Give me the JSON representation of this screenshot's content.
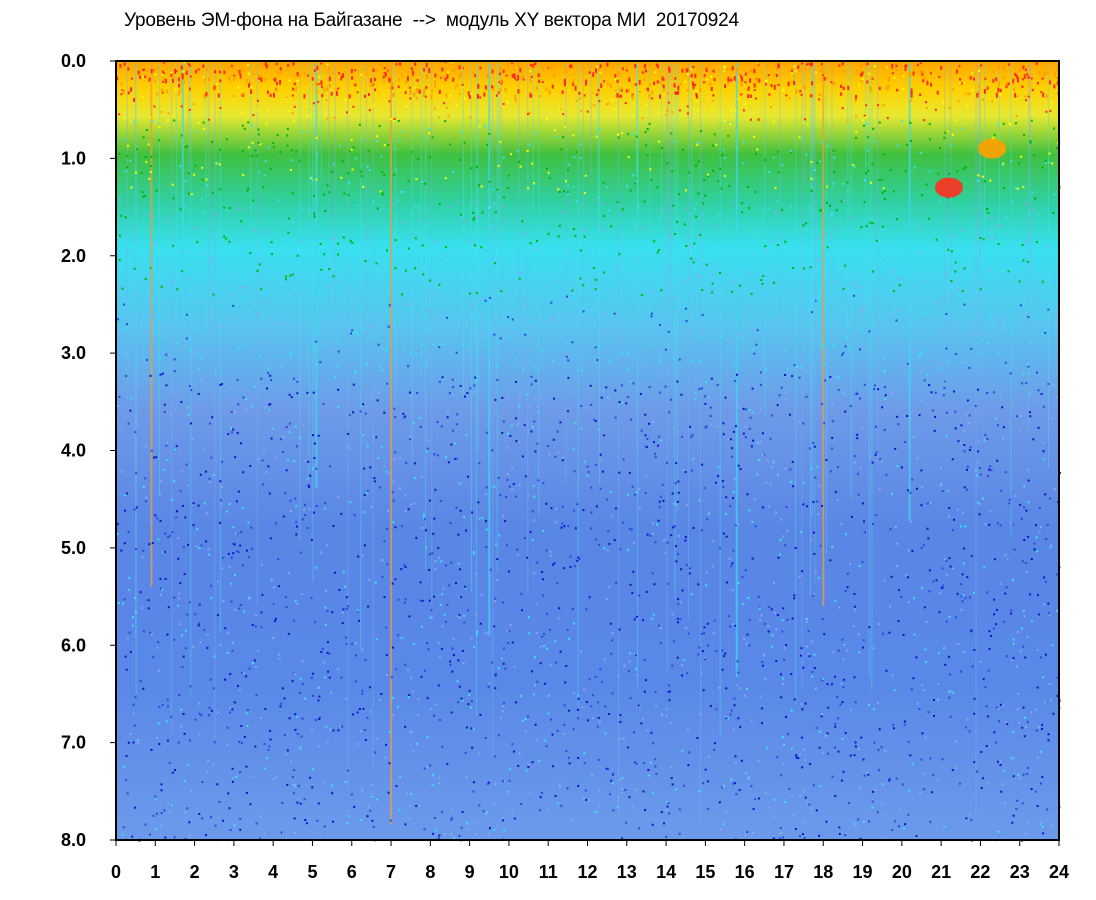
{
  "chart_data": {
    "type": "heatmap",
    "title": "Уровень ЭМ-фона на Байгазане  -->  модуль XY вектора МИ  20170924",
    "xlabel": "",
    "ylabel": "",
    "xlim": [
      0,
      24
    ],
    "ylim": [
      0,
      8.0
    ],
    "y_axis_inverted": true,
    "x_ticks": [
      "0",
      "1",
      "2",
      "3",
      "4",
      "5",
      "6",
      "7",
      "8",
      "9",
      "10",
      "11",
      "12",
      "13",
      "14",
      "15",
      "16",
      "17",
      "18",
      "19",
      "20",
      "21",
      "22",
      "23",
      "24"
    ],
    "y_ticks": [
      "0.0",
      "1.0",
      "2.0",
      "3.0",
      "4.0",
      "5.0",
      "6.0",
      "7.0",
      "8.0"
    ],
    "grid": false,
    "colormap": {
      "description": "high -> low",
      "colors": [
        "#ff2a1a",
        "#ffa000",
        "#ffff00",
        "#00b400",
        "#38e4f0",
        "#8ca6f0",
        "#2848e0",
        "#0a14c8"
      ]
    },
    "approx_band_boundaries": {
      "red_yellow_top_band": [
        0.0,
        0.6
      ],
      "green_band": [
        0.6,
        2.2
      ],
      "cyan_band": [
        1.2,
        3.0
      ],
      "blue_background": [
        3.0,
        8.0
      ]
    },
    "notable_vertical_streaks_hours": [
      0.9,
      1.7,
      5.1,
      7.0,
      9.5,
      15.8,
      18.0,
      20.2
    ],
    "notable_spots": [
      {
        "hour": 21.2,
        "level": 1.3,
        "color": "red"
      },
      {
        "hour": 22.3,
        "level": 0.9,
        "color": "orange"
      }
    ]
  }
}
